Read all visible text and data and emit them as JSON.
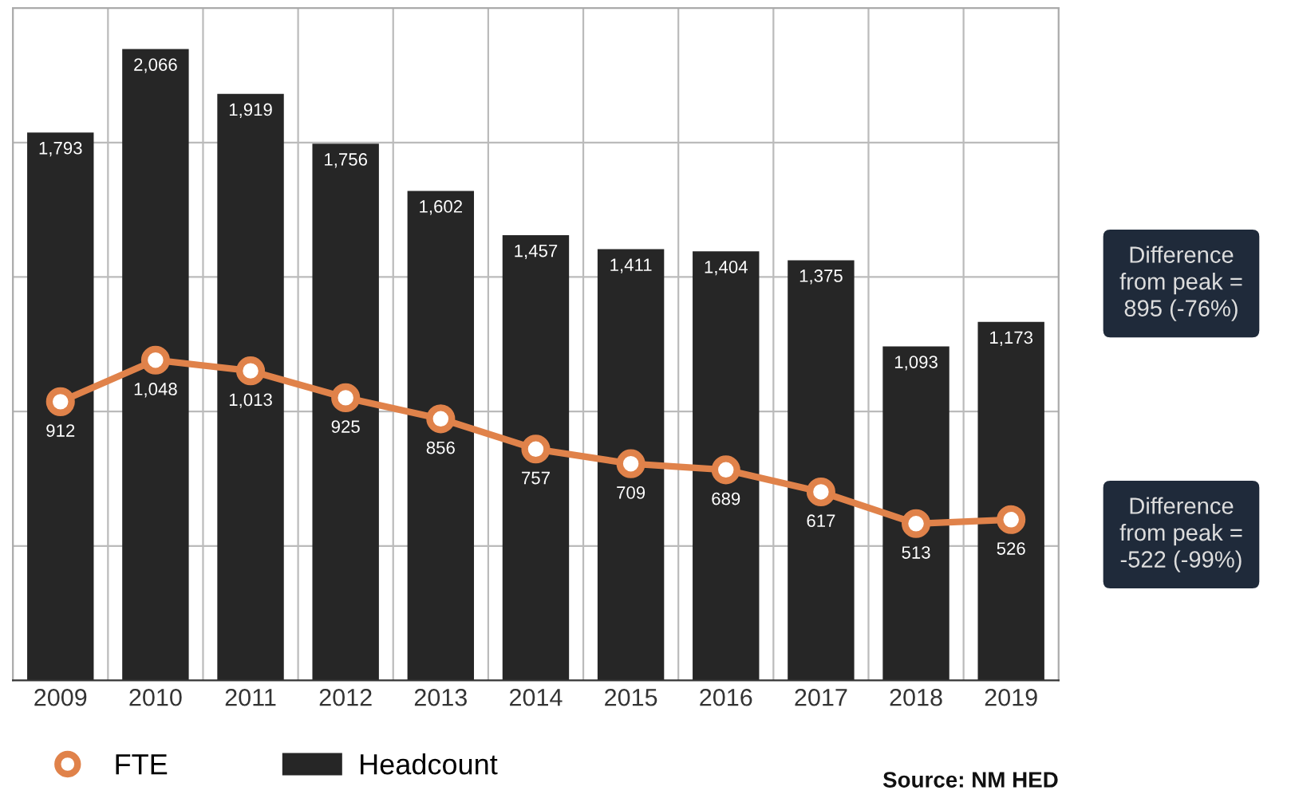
{
  "chart_data": {
    "type": "bar",
    "categories": [
      "2009",
      "2010",
      "2011",
      "2012",
      "2013",
      "2014",
      "2015",
      "2016",
      "2017",
      "2018",
      "2019"
    ],
    "series": [
      {
        "name": "FTE",
        "type": "line",
        "color": "#e0824a",
        "marker": "circle",
        "values": [
          912,
          1048,
          1013,
          925,
          856,
          757,
          709,
          689,
          617,
          513,
          526
        ],
        "value_labels": [
          "912",
          "1,048",
          "1,013",
          "925",
          "856",
          "757",
          "709",
          "689",
          "617",
          "513",
          "526"
        ]
      },
      {
        "name": "Headcount",
        "color": "#262626",
        "values": [
          1793,
          2066,
          1919,
          1756,
          1602,
          1457,
          1411,
          1404,
          1375,
          1093,
          1173
        ],
        "value_labels": [
          "1,793",
          "2,066",
          "1,919",
          "1,756",
          "1,602",
          "1,457",
          "1,411",
          "1,404",
          "1,375",
          "1,093",
          "1,173"
        ]
      }
    ],
    "ylim": [
      0,
      2200
    ],
    "yticks": [
      {
        "value": 440,
        "label": null
      },
      {
        "value": 880,
        "label": null
      },
      {
        "value": 1320,
        "label": null
      },
      {
        "value": 1760,
        "label": null
      }
    ],
    "grid": true,
    "legend": "bottom",
    "tick_labels": "x",
    "annotations": [
      "Difference\nfrom peak =\n895 (-76%)",
      "Difference\nfrom peak =\n-522 (-99%)",
      "Source: NM HED"
    ]
  }
}
